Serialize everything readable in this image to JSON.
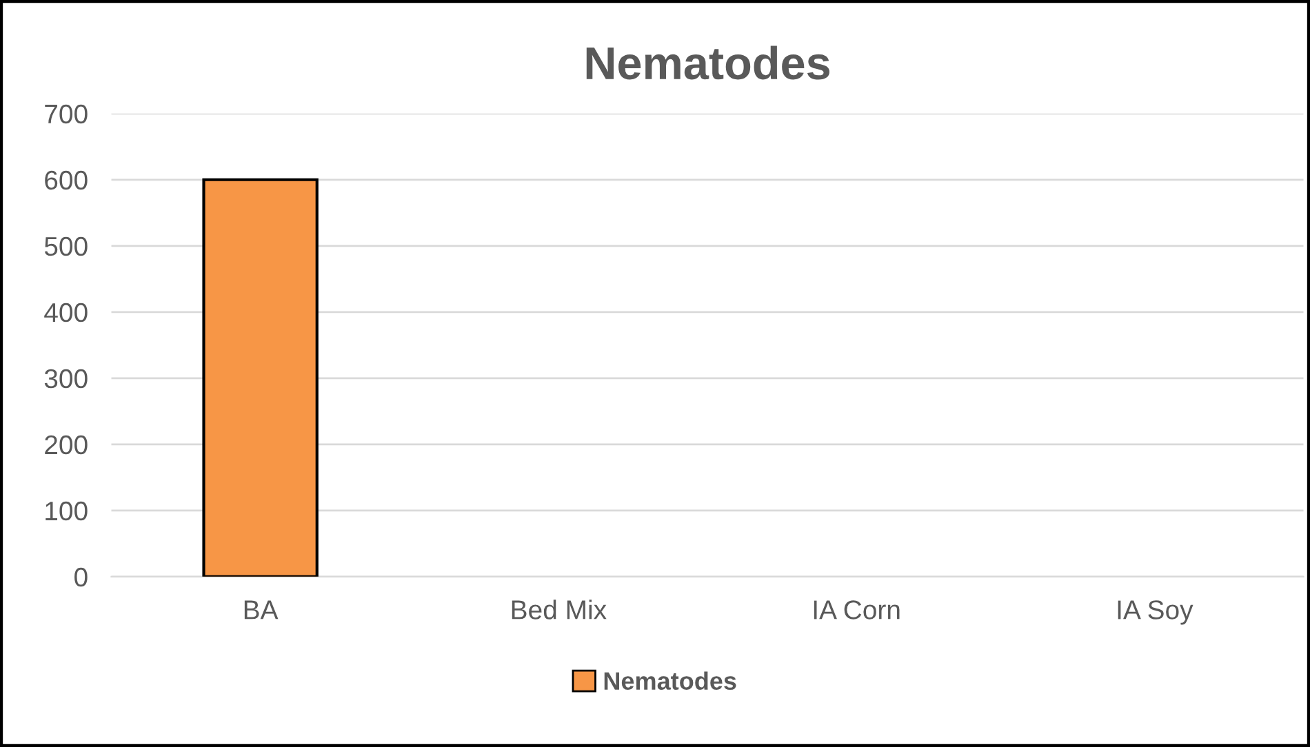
{
  "chart_data": {
    "type": "bar",
    "title": "Nematodes",
    "categories": [
      "BA",
      "Bed Mix",
      "IA Corn",
      "IA Soy"
    ],
    "series": [
      {
        "name": "Nematodes",
        "color": "#f79646",
        "values": [
          600,
          0,
          0,
          0
        ]
      }
    ],
    "ylim": [
      0,
      700
    ],
    "yticks": [
      0,
      100,
      200,
      300,
      400,
      500,
      600,
      700
    ],
    "grid": "y",
    "legend": "bottom"
  }
}
